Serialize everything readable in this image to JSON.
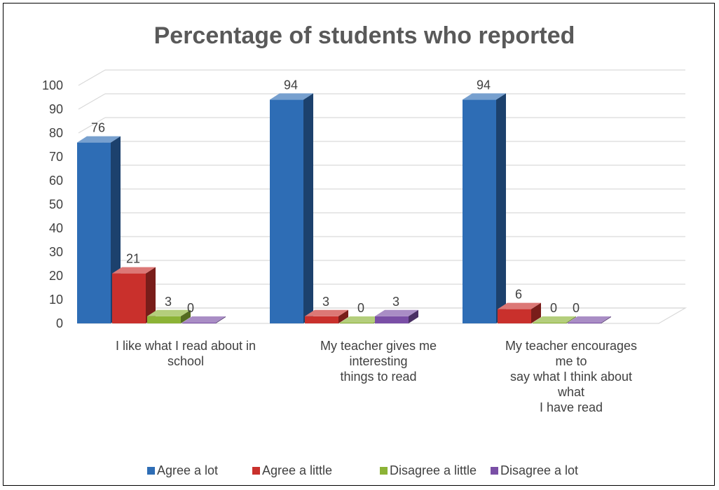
{
  "chart_data": {
    "type": "bar",
    "title": "Percentage of students who reported",
    "xlabel": "",
    "ylabel": "",
    "ylim": [
      0,
      100
    ],
    "yticks": [
      0,
      10,
      20,
      30,
      40,
      50,
      60,
      70,
      80,
      90,
      100
    ],
    "grid": true,
    "legend_position": "bottom",
    "categories": [
      [
        "I like what I read about in",
        "school"
      ],
      [
        "My teacher gives me",
        "interesting",
        "things to read"
      ],
      [
        "My teacher encourages",
        "me to",
        "say what I think about",
        "what",
        "I have read"
      ]
    ],
    "series": [
      {
        "name": "Agree a lot",
        "color": "#2e6db5",
        "values": [
          76,
          94,
          94
        ]
      },
      {
        "name": "Agree a little",
        "color": "#c9302c",
        "values": [
          21,
          3,
          6
        ]
      },
      {
        "name": "Disagree a little",
        "color": "#8cb336",
        "values": [
          3,
          0,
          0
        ]
      },
      {
        "name": "Disagree a lot",
        "color": "#7a4fa6",
        "values": [
          0,
          3,
          0
        ]
      }
    ]
  }
}
